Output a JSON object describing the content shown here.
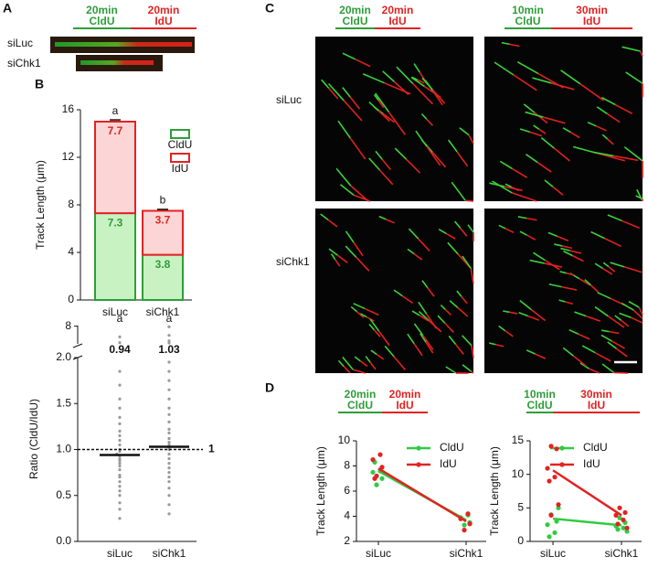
{
  "figure": {
    "labels": [
      "A",
      "B",
      "C",
      "D"
    ]
  },
  "panel_a": {
    "pulse": [
      {
        "time": "20min",
        "agent": "CldU",
        "color": "#2e9e3a"
      },
      {
        "time": "20min",
        "agent": "IdU",
        "color": "#e32222"
      }
    ],
    "rows": [
      "siLuc",
      "siChk1"
    ]
  },
  "panel_c": {
    "pulses": [
      [
        {
          "time": "20min",
          "agent": "CldU",
          "color": "#2e9e3a"
        },
        {
          "time": "20min",
          "agent": "IdU",
          "color": "#e32222"
        }
      ],
      [
        {
          "time": "10min",
          "agent": "CldU",
          "color": "#2e9e3a"
        },
        {
          "time": "30min",
          "agent": "IdU",
          "color": "#e32222"
        }
      ]
    ],
    "rows": [
      "siLuc",
      "siChk1"
    ]
  },
  "chart_data": [
    {
      "type": "stacked_bar",
      "y_label": "Track Length (μm)",
      "categories": [
        "siLuc",
        "siChk1"
      ],
      "series": [
        {
          "name": "CldU",
          "color": "#2e9e3a",
          "fill": "#c9f2c2",
          "values": [
            7.3,
            3.8
          ],
          "errors": [
            0.15,
            0.12
          ],
          "letters": [
            "a",
            "b"
          ]
        },
        {
          "name": "IdU",
          "color": "#e32222",
          "fill": "#fcd6d6",
          "values": [
            7.7,
            3.7
          ],
          "errors": [
            0.15,
            0.12
          ],
          "letters": [
            "a",
            "b"
          ]
        }
      ],
      "ylim": [
        0,
        16
      ],
      "yticks": [
        0,
        4,
        8,
        12,
        16
      ]
    },
    {
      "type": "dot",
      "y_label": "Ratio (CldU/IdU)",
      "categories": [
        "siLuc",
        "siChk1"
      ],
      "values": [
        [
          0.25,
          0.35,
          0.42,
          0.5,
          0.55,
          0.6,
          0.65,
          0.7,
          0.72,
          0.78,
          0.82,
          0.85,
          0.88,
          0.9,
          0.93,
          0.95,
          0.98,
          1.0,
          1.05,
          1.1,
          1.15,
          1.2,
          1.28,
          1.35,
          1.45,
          1.55,
          1.7,
          1.85,
          2.6,
          4.5
        ],
        [
          0.3,
          0.4,
          0.5,
          0.58,
          0.65,
          0.7,
          0.75,
          0.8,
          0.85,
          0.9,
          0.95,
          1.0,
          1.02,
          1.05,
          1.08,
          1.12,
          1.18,
          1.22,
          1.3,
          1.38,
          1.45,
          1.55,
          1.65,
          1.75,
          1.85,
          1.95,
          2.5,
          3.2,
          5.0,
          7.8
        ]
      ],
      "medians": [
        0.94,
        1.03
      ],
      "letters": [
        "a",
        "a"
      ],
      "reference": 1,
      "color": "#999999",
      "ylim": [
        0,
        2
      ],
      "yticks": [
        {
          "value": 0,
          "label": "0.0"
        },
        {
          "value": 0.5,
          "label": "0.5"
        },
        {
          "value": 1,
          "label": "1.0"
        },
        {
          "value": 1.5,
          "label": "1.5"
        },
        {
          "value": 2,
          "label": "2.0"
        }
      ],
      "upper_ylim": [
        2.2,
        8.2
      ],
      "upper_yticks": [
        8
      ]
    },
    {
      "type": "line",
      "y_label": "Track Length (μm)",
      "categories": [
        "siLuc",
        "siChk1"
      ],
      "pulse": [
        {
          "time": "20min",
          "agent": "CldU",
          "color": "#2e9e3a"
        },
        {
          "time": "20min",
          "agent": "IdU",
          "color": "#e32222"
        }
      ],
      "series": [
        {
          "name": "CldU",
          "color": "#2ecc40",
          "values": [
            7.6,
            3.7
          ],
          "points": [
            [
              6.5,
              7.0,
              7.5,
              7.6,
              8.3
            ],
            [
              3.3,
              3.5,
              3.9,
              4.1
            ]
          ]
        },
        {
          "name": "IdU",
          "color": "#e32222",
          "values": [
            7.8,
            3.6
          ],
          "points": [
            [
              7.2,
              7.9,
              8.5,
              8.9,
              7.0
            ],
            [
              2.9,
              3.4,
              3.8,
              4.2
            ]
          ]
        }
      ],
      "ylim": [
        2,
        10
      ],
      "yticks": [
        2,
        4,
        6,
        8,
        10
      ],
      "legend": "top-right"
    },
    {
      "type": "line",
      "y_label": "Track Length (μm)",
      "categories": [
        "siLuc",
        "siChk1"
      ],
      "pulse": [
        {
          "time": "10min",
          "agent": "CldU",
          "color": "#2e9e3a"
        },
        {
          "time": "30min",
          "agent": "IdU",
          "color": "#e32222"
        }
      ],
      "series": [
        {
          "name": "CldU",
          "color": "#2ecc40",
          "values": [
            3.4,
            2.4
          ],
          "points": [
            [
              4.0,
              3.0,
              2.5,
              1.3,
              0.7,
              5.0
            ],
            [
              3.5,
              2.8,
              2.3,
              2.0,
              1.8,
              1.5
            ]
          ]
        },
        {
          "name": "IdU",
          "color": "#e32222",
          "values": [
            10.6,
            3.9
          ],
          "points": [
            [
              14.2,
              13.8,
              10.9,
              9.6,
              9.0,
              5.5,
              3.9
            ],
            [
              5.0,
              4.3,
              3.9,
              3.2,
              2.6,
              2.0
            ]
          ]
        }
      ],
      "ylim": [
        0,
        15
      ],
      "yticks": [
        0,
        5,
        10,
        15
      ],
      "legend": "top-right"
    }
  ]
}
